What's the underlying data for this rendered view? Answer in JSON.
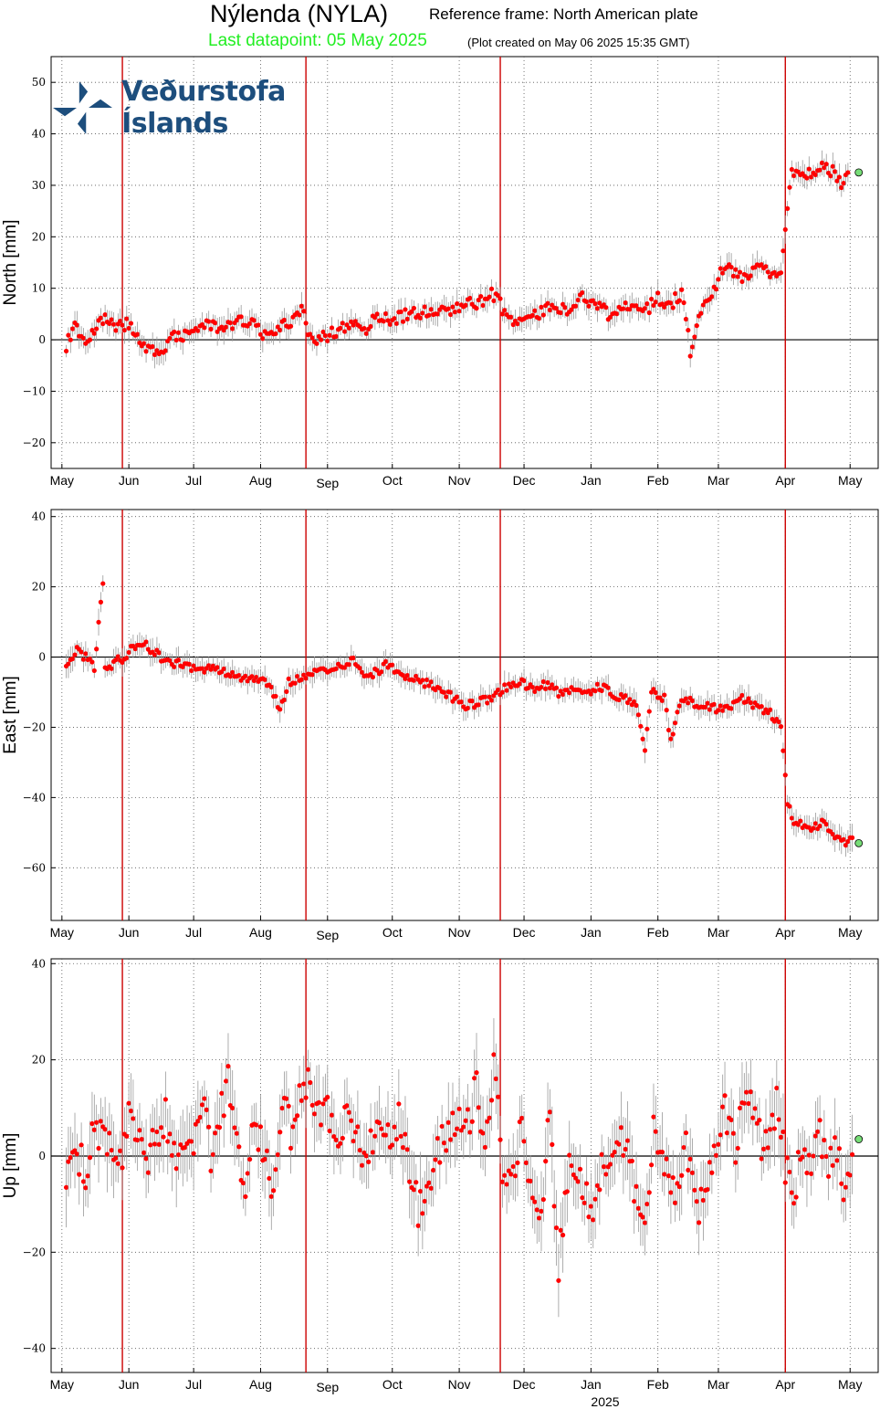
{
  "header": {
    "station": "Nýlenda (NYLA)",
    "reference_frame": "Reference frame: North American plate",
    "last_datapoint": "Last datapoint: 05 May 2025",
    "created": "(Plot created on May 06 2025 15:35 GMT)"
  },
  "logo": {
    "text": "Veðurstofa Íslands",
    "icon": "vedurstofa-logo-icon"
  },
  "colors": {
    "points": "#ff0000",
    "events": "#cc0000",
    "last_point": "#77dd77",
    "errorbar": "#999999",
    "grid": "#555555"
  },
  "chart_data": [
    {
      "type": "scatter",
      "ylabel": "North [mm]",
      "ylim": [
        -25,
        55
      ],
      "yticks": [
        -20,
        -10,
        0,
        10,
        20,
        30,
        40,
        50
      ],
      "months": [
        "May",
        "Jun",
        "Jul",
        "Aug",
        "Sep",
        "Oct",
        "Nov",
        "Dec",
        "Jan",
        "Feb",
        "Mar",
        "Apr",
        "May"
      ],
      "x_year_label": "",
      "event_dates": [
        "2024-05-29",
        "2024-08-22",
        "2024-11-20",
        "2025-04-01"
      ],
      "last_point": {
        "x": "2025-05-05",
        "y": 32.5
      },
      "series_points": [
        [
          "2024-05-03",
          -1
        ],
        [
          "2024-05-07",
          3
        ],
        [
          "2024-05-12",
          0
        ],
        [
          "2024-05-16",
          2
        ],
        [
          "2024-05-20",
          4
        ],
        [
          "2024-05-24",
          3
        ],
        [
          "2024-05-28",
          3
        ],
        [
          "2024-06-01",
          3
        ],
        [
          "2024-06-05",
          1
        ],
        [
          "2024-06-10",
          -2
        ],
        [
          "2024-06-14",
          -3
        ],
        [
          "2024-06-18",
          -1
        ],
        [
          "2024-06-23",
          1
        ],
        [
          "2024-06-28",
          1
        ],
        [
          "2024-07-03",
          2
        ],
        [
          "2024-07-08",
          3
        ],
        [
          "2024-07-13",
          2
        ],
        [
          "2024-07-18",
          3
        ],
        [
          "2024-07-24",
          4
        ],
        [
          "2024-07-29",
          3
        ],
        [
          "2024-08-03",
          1
        ],
        [
          "2024-08-08",
          2
        ],
        [
          "2024-08-13",
          3
        ],
        [
          "2024-08-18",
          5
        ],
        [
          "2024-08-21",
          6
        ],
        [
          "2024-08-24",
          0
        ],
        [
          "2024-08-28",
          0
        ],
        [
          "2024-09-02",
          1
        ],
        [
          "2024-09-07",
          2
        ],
        [
          "2024-09-12",
          3
        ],
        [
          "2024-09-18",
          2
        ],
        [
          "2024-09-23",
          4
        ],
        [
          "2024-09-28",
          4
        ],
        [
          "2024-10-03",
          4
        ],
        [
          "2024-10-08",
          5
        ],
        [
          "2024-10-14",
          5
        ],
        [
          "2024-10-20",
          6
        ],
        [
          "2024-10-26",
          5
        ],
        [
          "2024-10-31",
          6
        ],
        [
          "2024-11-05",
          8
        ],
        [
          "2024-11-10",
          7
        ],
        [
          "2024-11-15",
          9
        ],
        [
          "2024-11-19",
          8
        ],
        [
          "2024-11-23",
          4
        ],
        [
          "2024-11-28",
          3
        ],
        [
          "2024-12-04",
          4
        ],
        [
          "2024-12-10",
          6
        ],
        [
          "2024-12-16",
          6
        ],
        [
          "2024-12-22",
          6
        ],
        [
          "2024-12-28",
          8
        ],
        [
          "2025-01-03",
          7
        ],
        [
          "2025-01-09",
          5
        ],
        [
          "2025-01-15",
          6
        ],
        [
          "2025-01-21",
          7
        ],
        [
          "2025-01-27",
          6
        ],
        [
          "2025-02-01",
          8
        ],
        [
          "2025-02-07",
          7
        ],
        [
          "2025-02-12",
          9
        ],
        [
          "2025-02-16",
          -2
        ],
        [
          "2025-02-21",
          6
        ],
        [
          "2025-02-26",
          9
        ],
        [
          "2025-03-02",
          13
        ],
        [
          "2025-03-06",
          14
        ],
        [
          "2025-03-11",
          12
        ],
        [
          "2025-03-15",
          12
        ],
        [
          "2025-03-22",
          15
        ],
        [
          "2025-03-26",
          12
        ],
        [
          "2025-03-30",
          14
        ],
        [
          "2025-04-02",
          25
        ],
        [
          "2025-04-04",
          33
        ],
        [
          "2025-04-08",
          31
        ],
        [
          "2025-04-12",
          32
        ],
        [
          "2025-04-16",
          33
        ],
        [
          "2025-04-20",
          34
        ],
        [
          "2025-04-24",
          32
        ],
        [
          "2025-04-27",
          30
        ],
        [
          "2025-05-01",
          34
        ]
      ]
    },
    {
      "type": "scatter",
      "ylabel": "East [mm]",
      "ylim": [
        -75,
        42
      ],
      "yticks": [
        -60,
        -40,
        -20,
        0,
        20,
        40
      ],
      "months": [
        "May",
        "Jun",
        "Jul",
        "Aug",
        "Sep",
        "Oct",
        "Nov",
        "Dec",
        "Jan",
        "Feb",
        "Mar",
        "Apr",
        "May"
      ],
      "x_year_label": "",
      "event_dates": [
        "2024-05-29",
        "2024-08-22",
        "2024-11-20",
        "2025-04-01"
      ],
      "last_point": {
        "x": "2025-05-05",
        "y": -53
      },
      "series_points": [
        [
          "2024-05-03",
          -2
        ],
        [
          "2024-05-08",
          2
        ],
        [
          "2024-05-12",
          0
        ],
        [
          "2024-05-16",
          -3
        ],
        [
          "2024-05-20",
          22
        ],
        [
          "2024-05-21",
          -4
        ],
        [
          "2024-05-26",
          -1
        ],
        [
          "2024-05-31",
          0
        ],
        [
          "2024-06-03",
          3
        ],
        [
          "2024-06-07",
          4
        ],
        [
          "2024-06-12",
          2
        ],
        [
          "2024-06-16",
          0
        ],
        [
          "2024-06-21",
          -2
        ],
        [
          "2024-06-27",
          -2
        ],
        [
          "2024-07-02",
          -4
        ],
        [
          "2024-07-08",
          -3
        ],
        [
          "2024-07-14",
          -4
        ],
        [
          "2024-07-20",
          -5
        ],
        [
          "2024-07-26",
          -6
        ],
        [
          "2024-08-01",
          -7
        ],
        [
          "2024-08-05",
          -7
        ],
        [
          "2024-08-10",
          -15
        ],
        [
          "2024-08-14",
          -7
        ],
        [
          "2024-08-19",
          -6
        ],
        [
          "2024-08-25",
          -4
        ],
        [
          "2024-08-30",
          -3
        ],
        [
          "2024-09-04",
          -4
        ],
        [
          "2024-09-09",
          -2
        ],
        [
          "2024-09-14",
          -1
        ],
        [
          "2024-09-19",
          -6
        ],
        [
          "2024-09-24",
          -4
        ],
        [
          "2024-09-29",
          -2
        ],
        [
          "2024-10-04",
          -5
        ],
        [
          "2024-10-09",
          -6
        ],
        [
          "2024-10-14",
          -7
        ],
        [
          "2024-10-19",
          -8
        ],
        [
          "2024-10-25",
          -10
        ],
        [
          "2024-10-30",
          -12
        ],
        [
          "2024-11-04",
          -14
        ],
        [
          "2024-11-09",
          -13
        ],
        [
          "2024-11-14",
          -12
        ],
        [
          "2024-11-19",
          -10
        ],
        [
          "2024-11-24",
          -8
        ],
        [
          "2024-11-29",
          -7
        ],
        [
          "2024-12-05",
          -9
        ],
        [
          "2024-12-11",
          -8
        ],
        [
          "2024-12-17",
          -10
        ],
        [
          "2024-12-23",
          -9
        ],
        [
          "2024-12-29",
          -11
        ],
        [
          "2025-01-04",
          -8
        ],
        [
          "2025-01-10",
          -10
        ],
        [
          "2025-01-16",
          -12
        ],
        [
          "2025-01-22",
          -13
        ],
        [
          "2025-01-26",
          -26
        ],
        [
          "2025-01-29",
          -10
        ],
        [
          "2025-02-04",
          -12
        ],
        [
          "2025-02-07",
          -24
        ],
        [
          "2025-02-12",
          -12
        ],
        [
          "2025-02-18",
          -13
        ],
        [
          "2025-02-24",
          -14
        ],
        [
          "2025-03-01",
          -15
        ],
        [
          "2025-03-06",
          -14
        ],
        [
          "2025-03-12",
          -12
        ],
        [
          "2025-03-20",
          -14
        ],
        [
          "2025-03-25",
          -16
        ],
        [
          "2025-03-30",
          -19
        ],
        [
          "2025-04-02",
          -42
        ],
        [
          "2025-04-05",
          -47
        ],
        [
          "2025-04-09",
          -48
        ],
        [
          "2025-04-13",
          -50
        ],
        [
          "2025-04-17",
          -47
        ],
        [
          "2025-04-21",
          -49
        ],
        [
          "2025-04-25",
          -51
        ],
        [
          "2025-04-29",
          -53
        ],
        [
          "2025-05-03",
          -51
        ]
      ]
    },
    {
      "type": "scatter",
      "ylabel": "Up [mm]",
      "ylim": [
        -45,
        41
      ],
      "yticks": [
        -40,
        -20,
        0,
        20,
        40
      ],
      "months": [
        "May",
        "Jun",
        "Jul",
        "Aug",
        "Sep",
        "Oct",
        "Nov",
        "Dec",
        "Jan",
        "Feb",
        "Mar",
        "Apr",
        "May"
      ],
      "x_year_label": "2025",
      "event_dates": [
        "2024-05-29",
        "2024-08-22",
        "2024-11-20",
        "2025-04-01"
      ],
      "last_point": {
        "x": "2025-05-05",
        "y": 3.5
      },
      "series_points": [
        [
          "2024-05-03",
          -4
        ],
        [
          "2024-05-07",
          2
        ],
        [
          "2024-05-12",
          -4
        ],
        [
          "2024-05-16",
          8
        ],
        [
          "2024-05-20",
          3
        ],
        [
          "2024-05-24",
          4
        ],
        [
          "2024-05-28",
          -2
        ],
        [
          "2024-06-01",
          10
        ],
        [
          "2024-06-05",
          6
        ],
        [
          "2024-06-09",
          -3
        ],
        [
          "2024-06-13",
          5
        ],
        [
          "2024-06-18",
          8
        ],
        [
          "2024-06-22",
          -1
        ],
        [
          "2024-06-26",
          4
        ],
        [
          "2024-07-01",
          0
        ],
        [
          "2024-07-05",
          14
        ],
        [
          "2024-07-09",
          -1
        ],
        [
          "2024-07-13",
          7
        ],
        [
          "2024-07-17",
          16
        ],
        [
          "2024-07-21",
          4
        ],
        [
          "2024-07-25",
          -7
        ],
        [
          "2024-07-29",
          6
        ],
        [
          "2024-08-03",
          2
        ],
        [
          "2024-08-07",
          -8
        ],
        [
          "2024-08-11",
          13
        ],
        [
          "2024-08-15",
          5
        ],
        [
          "2024-08-19",
          12
        ],
        [
          "2024-08-23",
          14
        ],
        [
          "2024-08-27",
          7
        ],
        [
          "2024-09-01",
          9
        ],
        [
          "2024-09-05",
          2
        ],
        [
          "2024-09-10",
          10
        ],
        [
          "2024-09-14",
          4
        ],
        [
          "2024-09-19",
          -1
        ],
        [
          "2024-09-24",
          6
        ],
        [
          "2024-09-29",
          3
        ],
        [
          "2024-10-04",
          8
        ],
        [
          "2024-10-09",
          -2
        ],
        [
          "2024-10-13",
          -11
        ],
        [
          "2024-10-17",
          -8
        ],
        [
          "2024-10-21",
          1
        ],
        [
          "2024-10-26",
          4
        ],
        [
          "2024-10-31",
          9
        ],
        [
          "2024-11-05",
          6
        ],
        [
          "2024-11-09",
          15
        ],
        [
          "2024-11-13",
          2
        ],
        [
          "2024-11-17",
          20
        ],
        [
          "2024-11-21",
          -2
        ],
        [
          "2024-11-26",
          -4
        ],
        [
          "2024-11-30",
          9
        ],
        [
          "2024-12-04",
          -6
        ],
        [
          "2024-12-08",
          -14
        ],
        [
          "2024-12-13",
          8
        ],
        [
          "2024-12-17",
          -23
        ],
        [
          "2024-12-22",
          1
        ],
        [
          "2024-12-27",
          -4
        ],
        [
          "2025-01-01",
          -12
        ],
        [
          "2025-01-06",
          -2
        ],
        [
          "2025-01-11",
          1
        ],
        [
          "2025-01-16",
          3
        ],
        [
          "2025-01-21",
          -6
        ],
        [
          "2025-01-26",
          -16
        ],
        [
          "2025-01-30",
          5
        ],
        [
          "2025-02-04",
          -2
        ],
        [
          "2025-02-09",
          -6
        ],
        [
          "2025-02-14",
          2
        ],
        [
          "2025-02-19",
          -12
        ],
        [
          "2025-02-23",
          -4
        ],
        [
          "2025-02-28",
          1
        ],
        [
          "2025-03-04",
          9
        ],
        [
          "2025-03-09",
          2
        ],
        [
          "2025-03-14",
          15
        ],
        [
          "2025-03-19",
          5
        ],
        [
          "2025-03-24",
          1
        ],
        [
          "2025-03-28",
          11
        ],
        [
          "2025-04-01",
          -2
        ],
        [
          "2025-04-05",
          -8
        ],
        [
          "2025-04-09",
          2
        ],
        [
          "2025-04-13",
          -3
        ],
        [
          "2025-04-17",
          4
        ],
        [
          "2025-04-21",
          -2
        ],
        [
          "2025-04-25",
          1
        ],
        [
          "2025-04-29",
          -8
        ],
        [
          "2025-05-03",
          8
        ]
      ]
    }
  ]
}
